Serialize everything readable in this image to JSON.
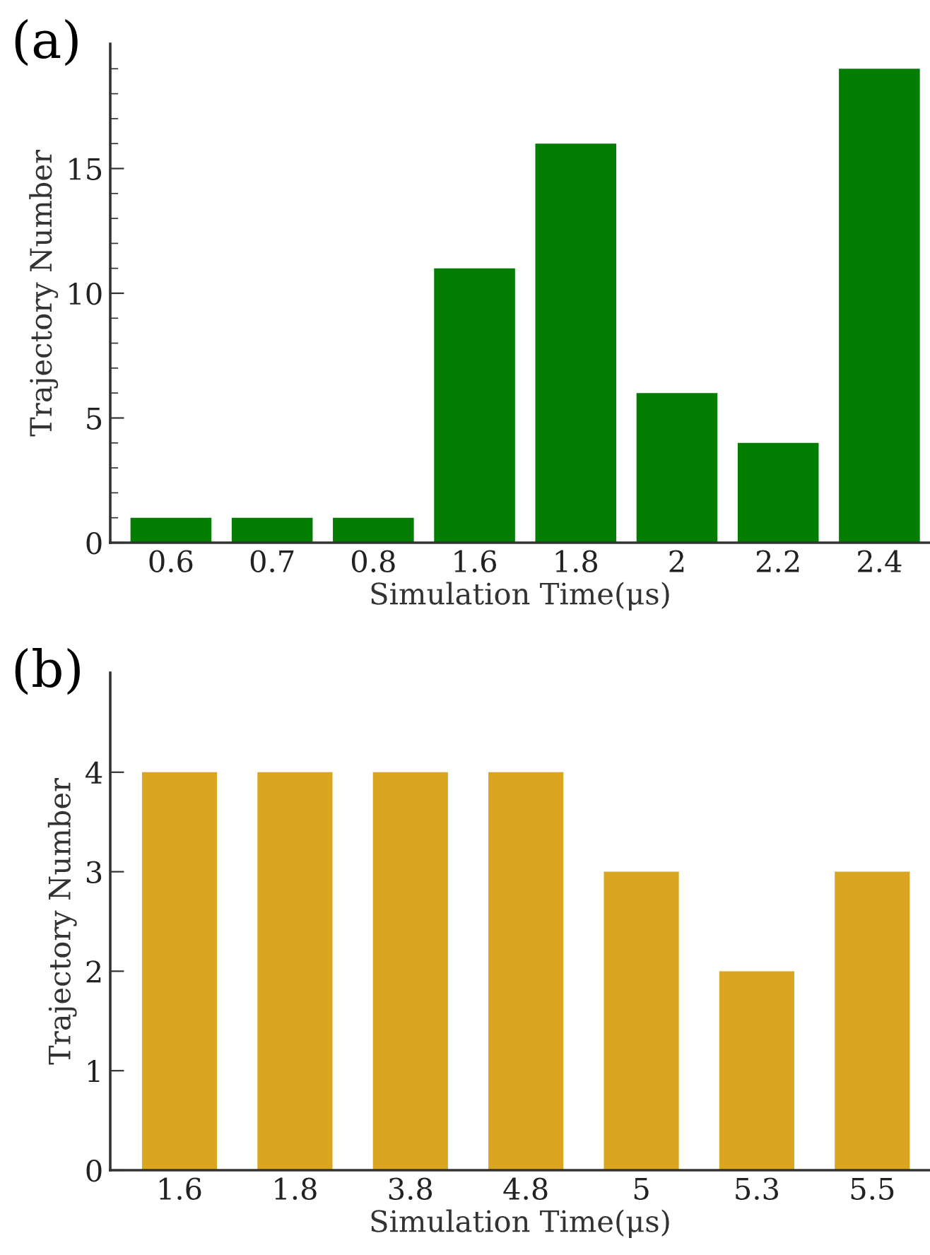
{
  "chart_data": [
    {
      "type": "bar",
      "xlabel": "Simulation Time(μs)",
      "ylabel": "Trajectory Number",
      "annotations": [
        "(a)"
      ],
      "categories": [
        "0.6",
        "0.7",
        "0.8",
        "1.6",
        "1.8",
        "2",
        "2.2",
        "2.4"
      ],
      "values": [
        1,
        1,
        1,
        11,
        16,
        6,
        4,
        19
      ],
      "color": "#037e03",
      "ylim": [
        0,
        20
      ],
      "yticks": [
        0,
        {
          "value": 1,
          "label": null
        },
        {
          "value": 2,
          "label": null
        },
        {
          "value": 3,
          "label": null
        },
        {
          "value": 4,
          "label": null
        },
        5,
        {
          "value": 6,
          "label": null
        },
        {
          "value": 7,
          "label": null
        },
        {
          "value": 8,
          "label": null
        },
        {
          "value": 9,
          "label": null
        },
        10,
        {
          "value": 11,
          "label": null
        },
        {
          "value": 12,
          "label": null
        },
        {
          "value": 13,
          "label": null
        },
        {
          "value": 14,
          "label": null
        },
        15,
        {
          "value": 16,
          "label": null
        },
        {
          "value": 17,
          "label": null
        },
        {
          "value": 18,
          "label": null
        },
        {
          "value": 19,
          "label": null
        }
      ],
      "grid": false,
      "legend": false
    },
    {
      "type": "bar",
      "xlabel": "Simulation Time(μs)",
      "ylabel": "Trajectory Number",
      "annotations": [
        "(b)"
      ],
      "categories": [
        "1.6",
        "1.8",
        "3.8",
        "4.8",
        "5",
        "5.3",
        "5.5"
      ],
      "values": [
        4,
        4,
        4,
        4,
        3,
        2,
        3
      ],
      "color": "#daa520",
      "ylim": [
        0,
        5
      ],
      "yticks": [
        0,
        1,
        2,
        3,
        4
      ],
      "grid": false,
      "legend": false
    }
  ]
}
